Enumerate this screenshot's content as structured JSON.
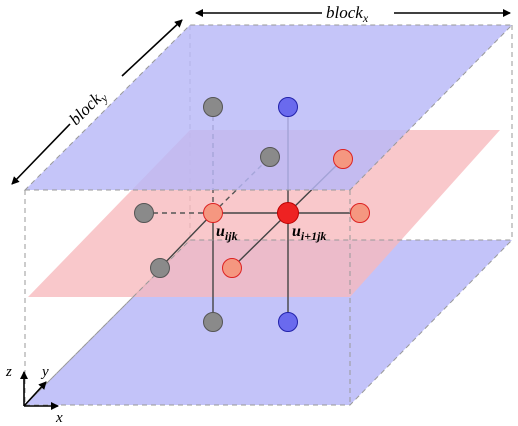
{
  "labels": {
    "block_x": "block",
    "block_x_sub": "x",
    "block_y": "block",
    "block_y_sub": "y",
    "u_ijk": "u",
    "u_ijk_sub": "ijk",
    "u_i1jk": "u",
    "u_i1jk_sub": "i+1jk",
    "axis_x": "x",
    "axis_y": "y",
    "axis_z": "z"
  },
  "colors": {
    "top_plane": "#b8b8f8",
    "bottom_plane": "#b8b8f8",
    "mid_plane": "#f7b9bd",
    "center_node": "#ee2222",
    "neighbor_node": "#f59780",
    "vertical_node": "#6a6aee",
    "gray_node": "#8a8a8a",
    "box_edge": "#999999"
  }
}
